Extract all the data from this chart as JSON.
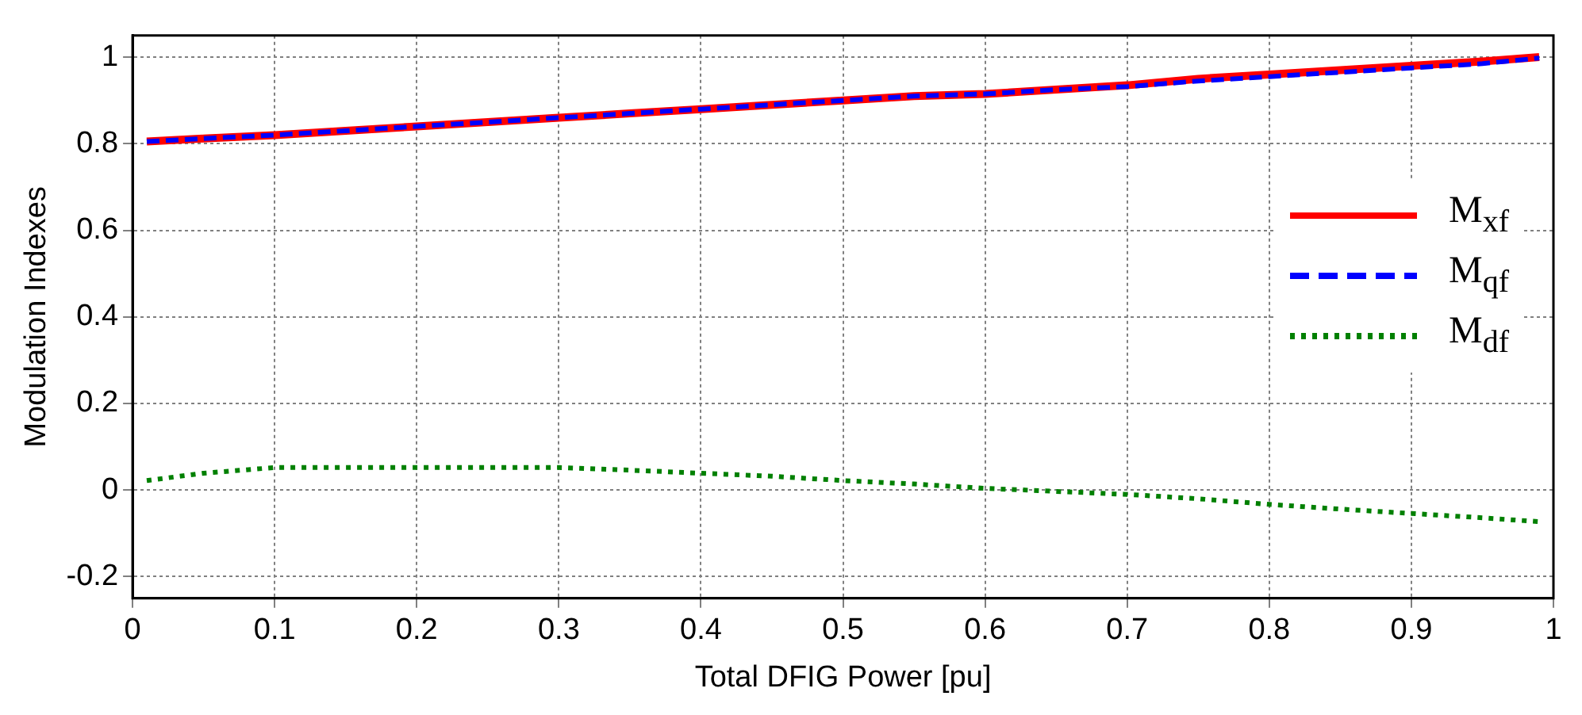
{
  "chart_data": {
    "type": "line",
    "xlabel": "Total DFIG Power [pu]",
    "ylabel": "Modulation Indexes",
    "xlim": [
      0,
      1
    ],
    "xticks": [
      0,
      0.1,
      0.2,
      0.3,
      0.4,
      0.5,
      0.6,
      0.7,
      0.8,
      0.9,
      1
    ],
    "ylim": [
      -0.25,
      1.05
    ],
    "yticks": [
      -0.2,
      0,
      0.2,
      0.4,
      0.6,
      0.8,
      1
    ],
    "grid": true,
    "legend": "right",
    "x": [
      0.01,
      0.05,
      0.1,
      0.15,
      0.2,
      0.25,
      0.3,
      0.35,
      0.4,
      0.45,
      0.5,
      0.55,
      0.6,
      0.65,
      0.7,
      0.75,
      0.8,
      0.85,
      0.9,
      0.95,
      0.99
    ],
    "series": [
      {
        "name": "M$_{xf}$",
        "color": "#ff0000",
        "line_style": "solid",
        "values": [
          0.805,
          0.812,
          0.82,
          0.83,
          0.84,
          0.85,
          0.86,
          0.87,
          0.88,
          0.89,
          0.9,
          0.91,
          0.915,
          0.925,
          0.935,
          0.95,
          0.96,
          0.97,
          0.98,
          0.99,
          1.0
        ]
      },
      {
        "name": "M$_{qf}$",
        "color": "#0000ff",
        "line_style": "dashed",
        "values": [
          0.805,
          0.812,
          0.82,
          0.83,
          0.84,
          0.85,
          0.86,
          0.87,
          0.88,
          0.89,
          0.9,
          0.91,
          0.915,
          0.925,
          0.932,
          0.945,
          0.955,
          0.965,
          0.975,
          0.985,
          0.998
        ]
      },
      {
        "name": "M$_{df}$",
        "color": "#008000",
        "line_style": "dotted",
        "values": [
          0.022,
          0.039,
          0.052,
          0.052,
          0.052,
          0.052,
          0.052,
          0.046,
          0.039,
          0.032,
          0.022,
          0.014,
          0.004,
          -0.003,
          -0.01,
          -0.02,
          -0.033,
          -0.044,
          -0.054,
          -0.064,
          -0.073
        ]
      }
    ]
  }
}
